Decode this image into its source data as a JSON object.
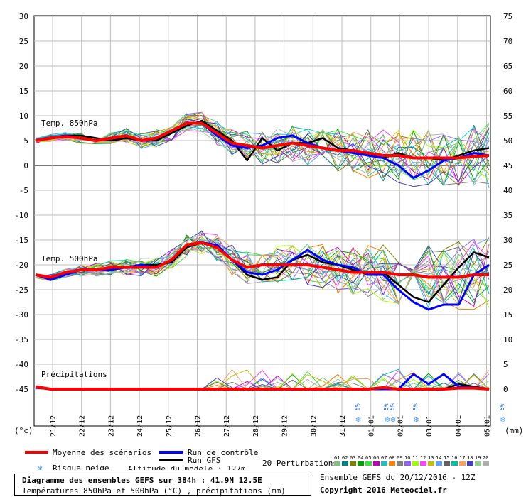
{
  "chart_data": {
    "type": "line",
    "x_labels": [
      "21/12",
      "22/12",
      "23/12",
      "24/12",
      "25/12",
      "26/12",
      "27/12",
      "28/12",
      "29/12",
      "30/12",
      "31/12",
      "01/01",
      "02/01",
      "03/01",
      "04/01",
      "05/01"
    ],
    "left_axis": {
      "unit": "(°c)",
      "ticks": [
        "30",
        "25",
        "20",
        "15",
        "10",
        "5",
        "0",
        "-5",
        "-10",
        "-15",
        "-20",
        "-25",
        "-30",
        "-35",
        "-40",
        "-45"
      ],
      "range": [
        -45,
        30
      ]
    },
    "right_axis": {
      "unit": "(mm)",
      "ticks": [
        "75",
        "70",
        "65",
        "60",
        "55",
        "50",
        "45",
        "40",
        "35",
        "30",
        "25",
        "20",
        "15",
        "10",
        "5",
        "0"
      ],
      "range": [
        0,
        75
      ]
    },
    "panel_labels": {
      "t850": "Temp. 850hPa",
      "t500": "Temp. 500hPa",
      "precip": "Précipitations"
    },
    "snow_risk_label": "5%",
    "snow_risk_x": [
      11.0,
      12.0,
      12.2,
      13.0,
      16.0
    ],
    "t850_mean": [
      5,
      5.5,
      5.8,
      5.5,
      5,
      5.5,
      6,
      5,
      5.5,
      7,
      8.5,
      8.5,
      6.5,
      4.5,
      4,
      3.5,
      4,
      4.5,
      4,
      3.5,
      3,
      3,
      2.5,
      2,
      2,
      1.5,
      1.5,
      1.5,
      1.5,
      1.8,
      2
    ],
    "t850_control": [
      5,
      5.5,
      6,
      5.5,
      5,
      5.5,
      6,
      5,
      5.5,
      7,
      8.5,
      8.5,
      6,
      4,
      3.5,
      4,
      5.5,
      6,
      4.5,
      3.5,
      3,
      2.5,
      2,
      1.5,
      0,
      -2.5,
      -1,
      1,
      1.5,
      2.5,
      2
    ],
    "t850_gfs": [
      5,
      5.5,
      6,
      6,
      5.5,
      5,
      5.5,
      5,
      5,
      6.5,
      8,
      9,
      7,
      5,
      1,
      5.5,
      3,
      4.5,
      4.5,
      5.5,
      3.5,
      3,
      2,
      1.5,
      2.5,
      1.5,
      1.5,
      1,
      2,
      3,
      3.5
    ],
    "t500_mean": [
      -22,
      -22.5,
      -21.5,
      -21,
      -21,
      -20.5,
      -20.5,
      -20.5,
      -20.5,
      -19,
      -16,
      -15.5,
      -16.5,
      -19,
      -20.5,
      -20,
      -20,
      -20,
      -20,
      -20.5,
      -21,
      -21.5,
      -21.5,
      -21.5,
      -22,
      -22,
      -22.5,
      -22.5,
      -22.5,
      -22,
      -22
    ],
    "t500_control": [
      -22,
      -23,
      -22,
      -21,
      -21,
      -21,
      -20.5,
      -20,
      -20.5,
      -19,
      -16,
      -15.5,
      -16,
      -19,
      -21.5,
      -22,
      -21,
      -19,
      -17,
      -19,
      -20,
      -20.5,
      -22,
      -22,
      -25,
      -27.5,
      -29,
      -28,
      -28,
      -22,
      -20
    ],
    "t500_gfs": [
      -22,
      -23,
      -21.5,
      -21,
      -21,
      -20.5,
      -20.5,
      -20,
      -20,
      -19.5,
      -16.5,
      -15.5,
      -16,
      -19,
      -22,
      -23,
      -22.5,
      -19,
      -18,
      -19.5,
      -20,
      -21,
      -22,
      -21.5,
      -24,
      -26.5,
      -27.5,
      -24,
      -20.5,
      -17.5,
      -18.5
    ],
    "precip_mean": [
      0.5,
      0,
      0,
      0,
      0,
      0,
      0,
      0,
      0,
      0,
      0,
      0,
      0,
      0,
      0,
      0,
      0,
      0,
      0,
      0,
      0,
      0,
      0,
      0.3,
      0,
      0,
      0,
      0,
      0.2,
      0.2,
      0
    ],
    "precip_control": [
      0.3,
      0,
      0,
      0,
      0,
      0,
      0,
      0,
      0,
      0,
      0,
      0,
      0,
      0,
      0,
      0,
      0,
      0,
      0,
      0,
      0,
      0,
      0,
      0,
      0,
      3,
      1,
      3,
      0.5,
      0.3,
      0
    ],
    "precip_gfs": [
      0.3,
      0,
      0,
      0,
      0,
      0,
      0,
      0,
      0,
      0,
      0,
      0,
      0,
      0,
      0,
      0,
      0,
      0,
      0,
      0,
      0,
      0,
      0,
      0,
      0,
      0,
      0,
      0,
      1,
      0.5,
      0
    ]
  },
  "colors": {
    "mean": "#ff0000",
    "control": "#0000ff",
    "gfs": "#000000",
    "perturbations": [
      "#7fbf7f",
      "#008080",
      "#808000",
      "#00a000",
      "#40e040",
      "#c000c0",
      "#20c0c0",
      "#ff8000",
      "#808080",
      "#9060ff",
      "#a0ff00",
      "#ff40ff",
      "#c0c000",
      "#60a0ff",
      "#606060",
      "#00c0a0",
      "#ffa060",
      "#4040c0",
      "#90d090",
      "#b0b0b0"
    ]
  },
  "legend": {
    "mean": "Moyenne des scénarios",
    "control": "Run de contrôle",
    "gfs": "Run GFS",
    "snow": "Risque neige",
    "altitude": "Altitude du modele : 127m",
    "perturbations": "20 Perturbations",
    "pert_numbers": [
      "01",
      "02",
      "03",
      "04",
      "05",
      "06",
      "07",
      "08",
      "09",
      "10",
      "11",
      "12",
      "13",
      "14",
      "15",
      "16",
      "17",
      "18",
      "19",
      "20"
    ]
  },
  "footer": {
    "title": "Diagramme des ensembles GEFS sur 384h : 41.9N 12.5E",
    "subtitle": "Températures 850hPa et 500hPa (°C) , précipitations (mm)",
    "ensemble": "Ensemble GEFS du 20/12/2016 - 12Z",
    "copyright": "Copyright 2016 Meteociel.fr"
  }
}
